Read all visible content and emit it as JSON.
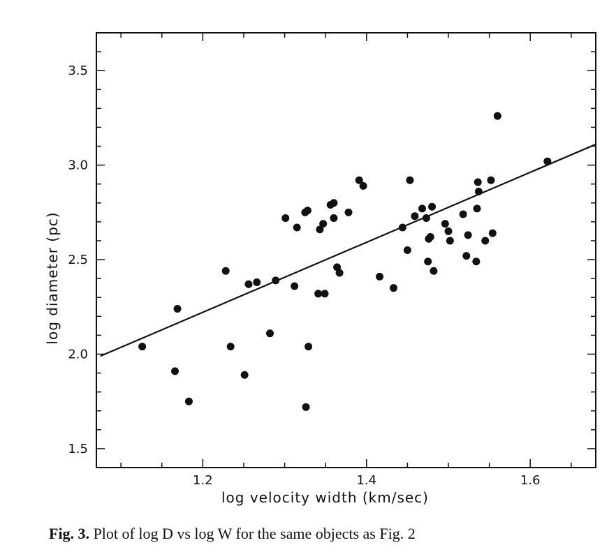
{
  "chart_data": {
    "type": "scatter",
    "xlabel": "log velocity width (km/sec)",
    "ylabel": "log diameter (pc)",
    "xlim": [
      1.07,
      1.68
    ],
    "ylim": [
      1.4,
      3.7
    ],
    "x_ticks": [
      1.2,
      1.4,
      1.6
    ],
    "x_tick_labels": [
      "1.2",
      "1.4",
      "1.6"
    ],
    "y_ticks": [
      1.5,
      2.0,
      2.5,
      3.0,
      3.5
    ],
    "y_tick_labels": [
      "1.5",
      "2.0",
      "2.5",
      "3.0",
      "3.5"
    ],
    "grid": false,
    "fit_line": {
      "x": [
        1.075,
        1.68
      ],
      "y": [
        1.99,
        3.11
      ]
    },
    "points": [
      {
        "x": 1.126,
        "y": 2.04
      },
      {
        "x": 1.166,
        "y": 1.91
      },
      {
        "x": 1.169,
        "y": 2.24
      },
      {
        "x": 1.183,
        "y": 1.75
      },
      {
        "x": 1.228,
        "y": 2.44
      },
      {
        "x": 1.234,
        "y": 2.04
      },
      {
        "x": 1.251,
        "y": 1.89
      },
      {
        "x": 1.256,
        "y": 2.37
      },
      {
        "x": 1.266,
        "y": 2.38
      },
      {
        "x": 1.282,
        "y": 2.11
      },
      {
        "x": 1.289,
        "y": 2.39
      },
      {
        "x": 1.301,
        "y": 2.72
      },
      {
        "x": 1.312,
        "y": 2.36
      },
      {
        "x": 1.315,
        "y": 2.67
      },
      {
        "x": 1.325,
        "y": 2.75
      },
      {
        "x": 1.328,
        "y": 2.76
      },
      {
        "x": 1.326,
        "y": 1.72
      },
      {
        "x": 1.329,
        "y": 2.04
      },
      {
        "x": 1.341,
        "y": 2.32
      },
      {
        "x": 1.343,
        "y": 2.66
      },
      {
        "x": 1.347,
        "y": 2.69
      },
      {
        "x": 1.349,
        "y": 2.32
      },
      {
        "x": 1.356,
        "y": 2.79
      },
      {
        "x": 1.36,
        "y": 2.8
      },
      {
        "x": 1.36,
        "y": 2.72
      },
      {
        "x": 1.364,
        "y": 2.46
      },
      {
        "x": 1.367,
        "y": 2.43
      },
      {
        "x": 1.378,
        "y": 2.75
      },
      {
        "x": 1.391,
        "y": 2.92
      },
      {
        "x": 1.396,
        "y": 2.89
      },
      {
        "x": 1.416,
        "y": 2.41
      },
      {
        "x": 1.433,
        "y": 2.35
      },
      {
        "x": 1.444,
        "y": 2.67
      },
      {
        "x": 1.45,
        "y": 2.55
      },
      {
        "x": 1.453,
        "y": 2.92
      },
      {
        "x": 1.459,
        "y": 2.73
      },
      {
        "x": 1.468,
        "y": 2.77
      },
      {
        "x": 1.473,
        "y": 2.72
      },
      {
        "x": 1.475,
        "y": 2.49
      },
      {
        "x": 1.476,
        "y": 2.61
      },
      {
        "x": 1.478,
        "y": 2.62
      },
      {
        "x": 1.48,
        "y": 2.78
      },
      {
        "x": 1.482,
        "y": 2.44
      },
      {
        "x": 1.496,
        "y": 2.69
      },
      {
        "x": 1.5,
        "y": 2.65
      },
      {
        "x": 1.502,
        "y": 2.6
      },
      {
        "x": 1.518,
        "y": 2.74
      },
      {
        "x": 1.522,
        "y": 2.52
      },
      {
        "x": 1.524,
        "y": 2.63
      },
      {
        "x": 1.534,
        "y": 2.49
      },
      {
        "x": 1.535,
        "y": 2.77
      },
      {
        "x": 1.536,
        "y": 2.91
      },
      {
        "x": 1.537,
        "y": 2.86
      },
      {
        "x": 1.545,
        "y": 2.6
      },
      {
        "x": 1.552,
        "y": 2.92
      },
      {
        "x": 1.554,
        "y": 2.64
      },
      {
        "x": 1.56,
        "y": 3.26
      },
      {
        "x": 1.621,
        "y": 3.02
      }
    ]
  },
  "caption": {
    "label": "Fig.  3.",
    "text": "Plot of log D vs log W for the same objects as Fig. 2"
  }
}
